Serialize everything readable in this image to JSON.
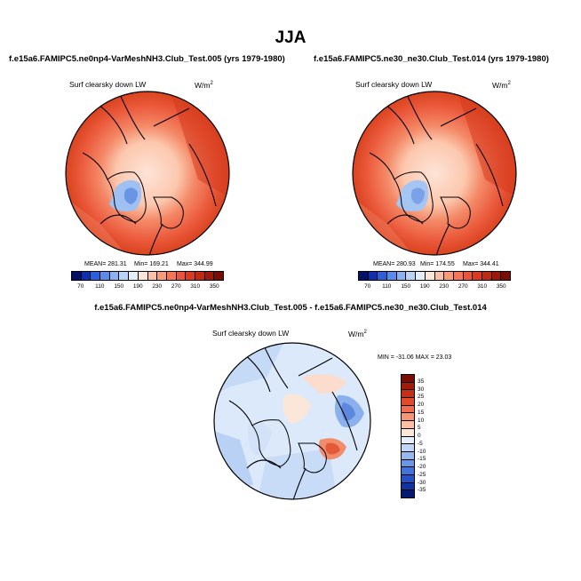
{
  "title": "JJA",
  "panels": [
    {
      "case": "f.e15a6.FAMIPC5.ne0np4-VarMeshNH3.Club_Test.005 (yrs 1979-1980)",
      "variable": "Surf clearsky down LW",
      "units_base": "W/m",
      "units_exp": "2",
      "mean": "MEAN= 281.31",
      "min": "Min= 169.21",
      "max": "Max= 344.99"
    },
    {
      "case": "f.e15a6.FAMIPC5.ne30_ne30.Club_Test.014 (yrs 1979-1980)",
      "variable": "Surf clearsky down LW",
      "units_base": "W/m",
      "units_exp": "2",
      "mean": "MEAN= 280.93",
      "min": "Min= 174.55",
      "max": "Max= 344.41"
    }
  ],
  "abs_colorbar": {
    "labels": [
      "70",
      "110",
      "150",
      "190",
      "230",
      "270",
      "310",
      "350"
    ],
    "colors": [
      "#051167",
      "#0d2fb0",
      "#2c5fd8",
      "#5a8be8",
      "#8ab2f2",
      "#b8d2f8",
      "#e3eefb",
      "#fde4d8",
      "#fcc0a8",
      "#f99a7b",
      "#f47657",
      "#eb5439",
      "#d93a20",
      "#bf2a12",
      "#9e1a08",
      "#7a0d03"
    ]
  },
  "diff": {
    "title": "f.e15a6.FAMIPC5.ne0np4-VarMeshNH3.Club_Test.005 - f.e15a6.FAMIPC5.ne30_ne30.Club_Test.014",
    "variable": "Surf clearsky down LW",
    "units_base": "W/m",
    "units_exp": "2",
    "minmax": "MIN = -31.06  MAX =  23.03",
    "colorbar_labels": [
      "35",
      "30",
      "25",
      "20",
      "15",
      "10",
      "5",
      "0",
      "-5",
      "-10",
      "-15",
      "-20",
      "-25",
      "-30",
      "-35"
    ],
    "colorbar_colors": [
      "#7a0d03",
      "#a11d0a",
      "#c62f16",
      "#e24a2c",
      "#f26c4f",
      "#f99577",
      "#fcbfa6",
      "#fde6da",
      "#e6effb",
      "#bfd6f7",
      "#95b8f0",
      "#6b96e6",
      "#4373d9",
      "#2452c4",
      "#1133a0",
      "#061a72"
    ]
  }
}
